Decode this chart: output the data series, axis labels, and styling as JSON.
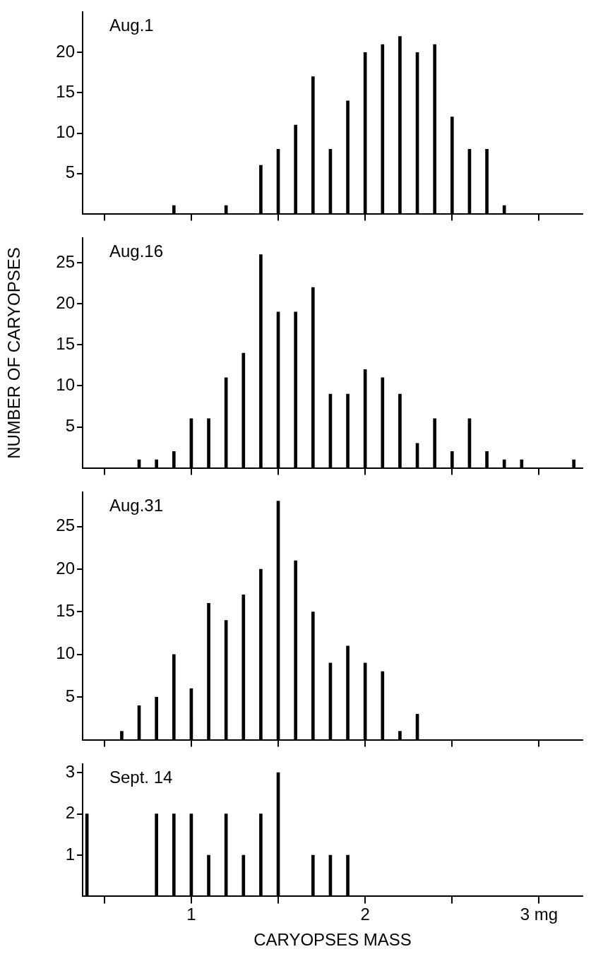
{
  "chart_data": [
    {
      "type": "bar",
      "title": "Aug.1",
      "x": [
        0.9,
        1.2,
        1.4,
        1.5,
        1.6,
        1.7,
        1.8,
        1.9,
        2.0,
        2.1,
        2.2,
        2.3,
        2.4,
        2.5,
        2.6,
        2.7,
        2.8
      ],
      "values": [
        1,
        1,
        6,
        8,
        11,
        17,
        8,
        14,
        20,
        21,
        22,
        20,
        21,
        12,
        8,
        8,
        1
      ],
      "color": "#000000",
      "xlim": [
        0.375,
        3.25
      ],
      "xticks": [
        {
          "value": 0.5,
          "label": null
        },
        {
          "value": 1,
          "label": null
        },
        {
          "value": 1.5,
          "label": null
        },
        {
          "value": 2,
          "label": null
        },
        {
          "value": 2.5,
          "label": null
        },
        {
          "value": 3,
          "label": null
        }
      ],
      "ylim": [
        0,
        25
      ],
      "yticks": [
        5,
        10,
        15,
        20
      ],
      "grid": false,
      "tick_labels": "y"
    },
    {
      "type": "bar",
      "title": "Aug.16",
      "ylabel": "NUMBER OF CARYOPSES",
      "x": [
        0.7,
        0.8,
        0.9,
        1.0,
        1.1,
        1.2,
        1.3,
        1.4,
        1.5,
        1.6,
        1.7,
        1.8,
        1.9,
        2.0,
        2.1,
        2.2,
        2.3,
        2.4,
        2.5,
        2.6,
        2.7,
        2.8,
        2.9,
        3.2
      ],
      "values": [
        1,
        1,
        2,
        6,
        6,
        11,
        14,
        26,
        19,
        19,
        22,
        9,
        9,
        12,
        11,
        9,
        3,
        6,
        2,
        6,
        2,
        1,
        1,
        1
      ],
      "color": "#000000",
      "xlim": [
        0.375,
        3.25
      ],
      "xticks": [
        {
          "value": 0.5,
          "label": null
        },
        {
          "value": 1,
          "label": null
        },
        {
          "value": 1.5,
          "label": null
        },
        {
          "value": 2,
          "label": null
        },
        {
          "value": 2.5,
          "label": null
        },
        {
          "value": 3,
          "label": null
        }
      ],
      "ylim": [
        0,
        28
      ],
      "yticks": [
        5,
        10,
        15,
        20,
        25
      ],
      "grid": false,
      "tick_labels": "y"
    },
    {
      "type": "bar",
      "title": "Aug.31",
      "x": [
        0.6,
        0.7,
        0.8,
        0.9,
        1.0,
        1.1,
        1.2,
        1.3,
        1.4,
        1.5,
        1.6,
        1.7,
        1.8,
        1.9,
        2.0,
        2.1,
        2.2,
        2.3
      ],
      "values": [
        1,
        4,
        5,
        10,
        6,
        16,
        14,
        17,
        20,
        28,
        21,
        15,
        9,
        11,
        9,
        8,
        1,
        3
      ],
      "color": "#000000",
      "xlim": [
        0.375,
        3.25
      ],
      "xticks": [
        {
          "value": 0.5,
          "label": null
        },
        {
          "value": 1,
          "label": null
        },
        {
          "value": 1.5,
          "label": null
        },
        {
          "value": 2,
          "label": null
        },
        {
          "value": 2.5,
          "label": null
        },
        {
          "value": 3,
          "label": null
        }
      ],
      "ylim": [
        0,
        29
      ],
      "yticks": [
        5,
        10,
        15,
        20,
        25
      ],
      "grid": false,
      "tick_labels": "y"
    },
    {
      "type": "bar",
      "title": "Sept. 14",
      "xlabel": "CARYOPSES MASS",
      "x": [
        0.4,
        0.8,
        0.9,
        1.0,
        1.1,
        1.2,
        1.3,
        1.4,
        1.5,
        1.7,
        1.8,
        1.9
      ],
      "values": [
        2,
        2,
        2,
        2,
        1,
        2,
        1,
        2,
        3,
        1,
        1,
        1
      ],
      "color": "#000000",
      "xlim": [
        0.375,
        3.25
      ],
      "xticks": [
        {
          "value": 0.5,
          "label": null
        },
        1,
        {
          "value": 1.5,
          "label": null
        },
        2,
        {
          "value": 2.5,
          "label": null
        },
        {
          "value": 3,
          "label": "3 mg"
        }
      ],
      "ylim": [
        0,
        3.2
      ],
      "yticks": [
        1,
        2,
        3
      ],
      "grid": false
    }
  ]
}
